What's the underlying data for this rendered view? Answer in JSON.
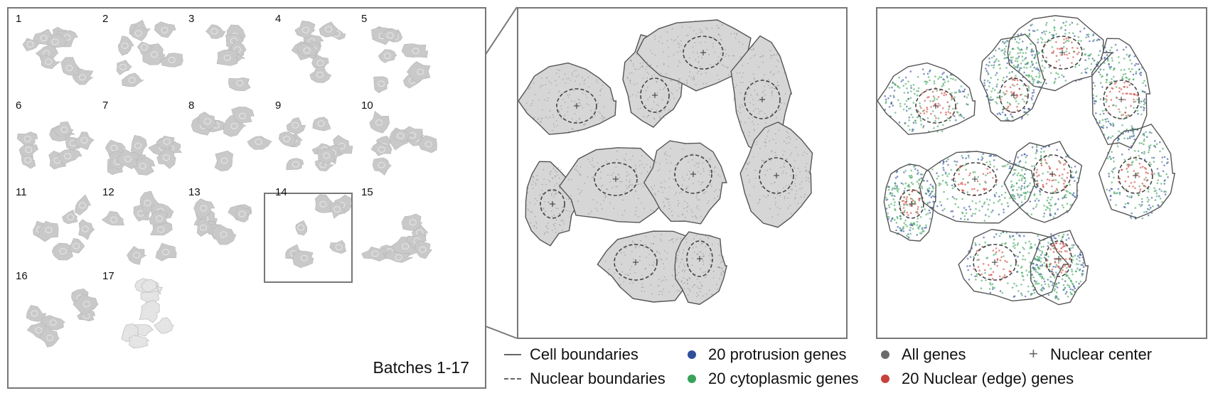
{
  "batch_panel": {
    "tiles": [
      "1",
      "2",
      "3",
      "4",
      "5",
      "6",
      "7",
      "8",
      "9",
      "10",
      "11",
      "12",
      "13",
      "14",
      "15",
      "16",
      "17"
    ],
    "highlighted_tile": "14",
    "caption": "Batches 1-17"
  },
  "legend": {
    "cell_boundaries": "Cell boundaries",
    "nuclear_boundaries": "Nuclear boundaries",
    "protrusion_genes": "20 protrusion genes",
    "cytoplasmic_genes": "20 cytoplasmic genes",
    "all_genes": "All genes",
    "nuclear_edge_genes": "20 Nuclear (edge) genes",
    "nuclear_center": "Nuclear center"
  },
  "colors": {
    "protrusion": "#2f4f9a",
    "cytoplasmic": "#3aa35a",
    "all_genes": "#6b6b6b",
    "nuclear_edge": "#c8413a",
    "boundary": "#555555",
    "panel_border": "#777777"
  },
  "icons": {
    "cell_boundaries": "solid-line-icon",
    "nuclear_boundaries": "dashed-line-icon",
    "nuclear_center": "plus-icon"
  }
}
